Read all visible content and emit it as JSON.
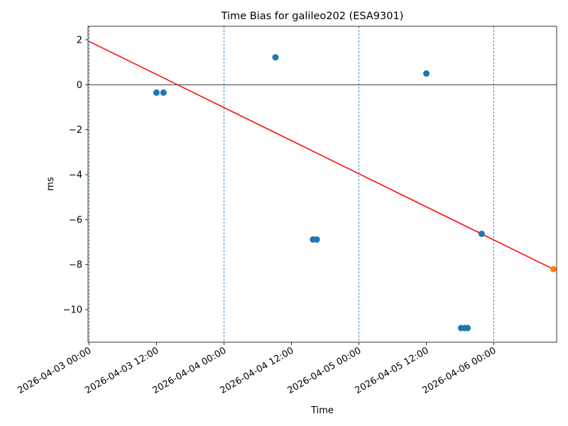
{
  "chart_data": {
    "type": "scatter",
    "title": "Time Bias for galileo202 (ESA9301)",
    "xlabel": "Time",
    "ylabel": "ms",
    "xlim": [
      "2026-04-02 23:50",
      "2026-04-06 11:10"
    ],
    "ylim": [
      -11.45,
      2.6
    ],
    "x_ticks": [
      "2026-04-03 00:00",
      "2026-04-03 12:00",
      "2026-04-04 00:00",
      "2026-04-04 12:00",
      "2026-04-05 00:00",
      "2026-04-05 12:00",
      "2026-04-06 00:00"
    ],
    "y_ticks": [
      2,
      0,
      -2,
      -4,
      -6,
      -8,
      -10
    ],
    "y_tick_labels": [
      "2",
      "0",
      "−2",
      "−4",
      "−6",
      "−8",
      "−10"
    ],
    "vertical_day_lines": [
      "2026-04-03 00:00",
      "2026-04-04 00:00",
      "2026-04-05 00:00",
      "2026-04-06 00:00"
    ],
    "zero_line": 0,
    "series": [
      {
        "color": "#1f77b4",
        "points": [
          {
            "x": "2026-04-03 12:00",
            "y": -0.35
          },
          {
            "x": "2026-04-03 13:15",
            "y": -0.35
          },
          {
            "x": "2026-04-04 09:10",
            "y": 1.22
          },
          {
            "x": "2026-04-04 15:50",
            "y": -6.88
          },
          {
            "x": "2026-04-04 16:30",
            "y": -6.88
          },
          {
            "x": "2026-04-05 12:00",
            "y": 0.5
          },
          {
            "x": "2026-04-05 18:10",
            "y": -10.82
          },
          {
            "x": "2026-04-05 18:50",
            "y": -10.82
          },
          {
            "x": "2026-04-05 19:20",
            "y": -10.82
          },
          {
            "x": "2026-04-05 21:50",
            "y": -6.63
          }
        ]
      },
      {
        "color": "#ff7f0e",
        "points": [
          {
            "x": "2026-04-06 10:35",
            "y": -8.2
          }
        ]
      }
    ],
    "fit_line": {
      "color": "#ff0000",
      "start": {
        "x": "2026-04-03 00:00",
        "y": 1.93
      },
      "end": {
        "x": "2026-04-06 10:35",
        "y": -8.2
      }
    },
    "grid": false
  }
}
